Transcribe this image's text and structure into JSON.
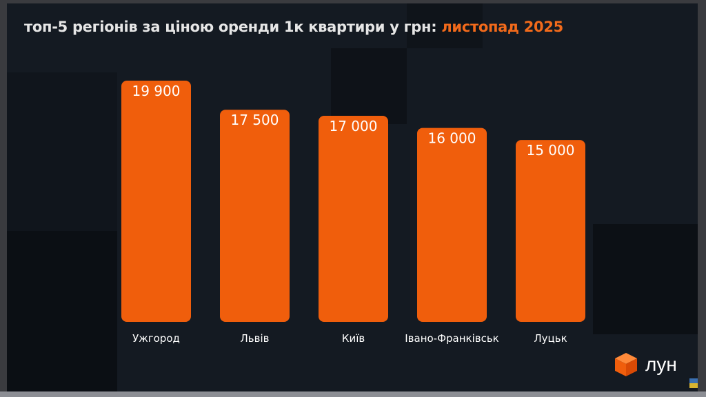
{
  "title": {
    "main": "топ-5 регіонів за ціною оренди 1к квартири у грн: ",
    "highlight": "листопад 2025"
  },
  "colors": {
    "bar": "#f05e0c",
    "background": "#141a22",
    "accent": "#f26a1b",
    "label": "#ffffff"
  },
  "logo": {
    "text": "лун",
    "icon": "orange-cube-icon"
  },
  "chart_data": {
    "type": "bar",
    "title": "топ-5 регіонів за ціною оренди 1к квартири у грн: листопад 2025",
    "categories": [
      "Ужгород",
      "Львів",
      "Київ",
      "Івано-Франківськ",
      "Луцьк"
    ],
    "values": [
      19900,
      17500,
      17000,
      16000,
      15000
    ],
    "value_labels": [
      "19 900",
      "17 500",
      "17 000",
      "16 000",
      "15 000"
    ],
    "ylim": [
      0,
      19900
    ],
    "grid": false,
    "xlabel": "",
    "ylabel": ""
  }
}
